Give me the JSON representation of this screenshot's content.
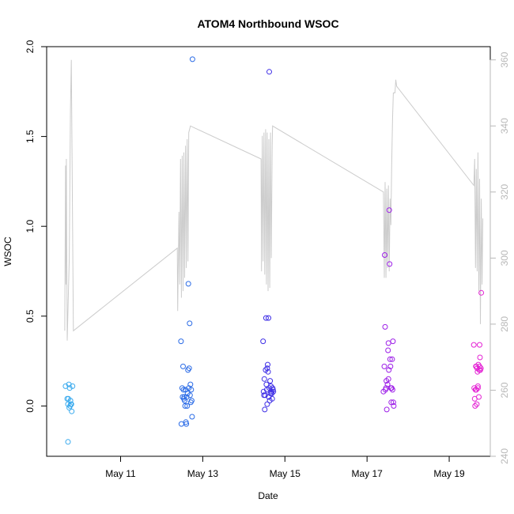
{
  "chart_data": {
    "type": "scatter",
    "title": "ATOM4 Northbound WSOC",
    "xlabel": "Date",
    "ylabel": "WSOC",
    "x_unit": "days after May 10, 00:00",
    "xlim": [
      9.2,
      20.0
    ],
    "ylim": [
      -0.28,
      2.0
    ],
    "x_ticks": [
      {
        "label": "May 11",
        "value": 11
      },
      {
        "label": "May 13",
        "value": 13
      },
      {
        "label": "May 15",
        "value": 15
      },
      {
        "label": "May 17",
        "value": 17
      },
      {
        "label": "May 19",
        "value": 19
      }
    ],
    "y_ticks": [
      {
        "label": "0.0",
        "value": 0.0
      },
      {
        "label": "0.5",
        "value": 0.5
      },
      {
        "label": "1.0",
        "value": 1.0
      },
      {
        "label": "1.5",
        "value": 1.5
      },
      {
        "label": "2.0",
        "value": 2.0
      }
    ],
    "y2_ticks": [
      {
        "label": "240",
        "value": 240
      },
      {
        "label": "260",
        "value": 260
      },
      {
        "label": "280",
        "value": 280
      },
      {
        "label": "300",
        "value": 300
      },
      {
        "label": "320",
        "value": 320
      },
      {
        "label": "340",
        "value": 340
      },
      {
        "label": "360",
        "value": 360
      }
    ],
    "y2lim": [
      240,
      364
    ],
    "line_color": "#cccccc",
    "colors": {
      "day1": "#39aaee",
      "day2": "#2a6be6",
      "day3": "#3f2fe6",
      "day4": "#9d1fe8",
      "day5": "#e423d4"
    },
    "series": [
      {
        "color_key": "day1",
        "points": [
          [
            9.66,
            0.11
          ],
          [
            9.7,
            0.04
          ],
          [
            9.72,
            0.01
          ],
          [
            9.73,
            0.04
          ],
          [
            9.74,
            0.12
          ],
          [
            9.75,
            -0.01
          ],
          [
            9.76,
            0.1
          ],
          [
            9.77,
            0.0
          ],
          [
            9.78,
            0.03
          ],
          [
            9.79,
            0.01
          ],
          [
            9.8,
            0.01
          ],
          [
            9.81,
            -0.03
          ],
          [
            9.83,
            0.11
          ],
          [
            9.72,
            -0.2
          ]
        ]
      },
      {
        "color_key": "day2",
        "points": [
          [
            12.47,
            0.36
          ],
          [
            12.48,
            -0.1
          ],
          [
            12.5,
            0.1
          ],
          [
            12.52,
            0.22
          ],
          [
            12.53,
            0.09
          ],
          [
            12.55,
            0.05
          ],
          [
            12.56,
            0.03
          ],
          [
            12.57,
            0.0
          ],
          [
            12.58,
            0.09
          ],
          [
            12.59,
            -0.09
          ],
          [
            12.6,
            -0.1
          ],
          [
            12.61,
            0.05
          ],
          [
            12.62,
            0.0
          ],
          [
            12.64,
            0.2
          ],
          [
            12.65,
            0.68
          ],
          [
            12.66,
            0.1
          ],
          [
            12.67,
            0.21
          ],
          [
            12.68,
            0.46
          ],
          [
            12.69,
            0.06
          ],
          [
            12.7,
            0.12
          ],
          [
            12.71,
            0.02
          ],
          [
            12.72,
            0.09
          ],
          [
            12.73,
            0.03
          ],
          [
            12.74,
            -0.06
          ],
          [
            12.75,
            1.93
          ],
          [
            12.63,
            0.07
          ],
          [
            12.54,
            0.04
          ],
          [
            12.51,
            0.05
          ]
        ]
      },
      {
        "color_key": "day3",
        "points": [
          [
            14.47,
            0.36
          ],
          [
            14.48,
            0.08
          ],
          [
            14.49,
            0.06
          ],
          [
            14.5,
            0.15
          ],
          [
            14.51,
            -0.02
          ],
          [
            14.52,
            0.06
          ],
          [
            14.53,
            0.2
          ],
          [
            14.54,
            0.49
          ],
          [
            14.55,
            0.12
          ],
          [
            14.56,
            0.09
          ],
          [
            14.57,
            0.01
          ],
          [
            14.58,
            0.23
          ],
          [
            14.59,
            0.19
          ],
          [
            14.6,
            0.49
          ],
          [
            14.61,
            0.05
          ],
          [
            14.62,
            0.1
          ],
          [
            14.63,
            0.03
          ],
          [
            14.64,
            0.14
          ],
          [
            14.65,
            0.07
          ],
          [
            14.66,
            0.11
          ],
          [
            14.67,
            0.08
          ],
          [
            14.68,
            0.07
          ],
          [
            14.69,
            0.04
          ],
          [
            14.7,
            0.1
          ],
          [
            14.71,
            0.09
          ],
          [
            14.72,
            0.08
          ],
          [
            14.62,
            1.86
          ],
          [
            14.57,
            0.21
          ]
        ]
      },
      {
        "color_key": "day4",
        "points": [
          [
            17.4,
            0.08
          ],
          [
            17.42,
            0.22
          ],
          [
            17.43,
            0.84
          ],
          [
            17.44,
            0.44
          ],
          [
            17.45,
            0.09
          ],
          [
            17.47,
            0.14
          ],
          [
            17.48,
            -0.02
          ],
          [
            17.5,
            0.12
          ],
          [
            17.51,
            0.31
          ],
          [
            17.52,
            0.35
          ],
          [
            17.53,
            0.2
          ],
          [
            17.54,
            1.09
          ],
          [
            17.55,
            0.79
          ],
          [
            17.56,
            0.26
          ],
          [
            17.57,
            0.22
          ],
          [
            17.58,
            0.1
          ],
          [
            17.59,
            0.02
          ],
          [
            17.6,
            0.1
          ],
          [
            17.61,
            0.26
          ],
          [
            17.62,
            0.09
          ],
          [
            17.63,
            0.36
          ],
          [
            17.64,
            0.02
          ],
          [
            17.65,
            0.0
          ],
          [
            17.52,
            0.15
          ],
          [
            17.46,
            0.1
          ]
        ]
      },
      {
        "color_key": "day5",
        "points": [
          [
            19.6,
            0.34
          ],
          [
            19.61,
            0.1
          ],
          [
            19.62,
            0.04
          ],
          [
            19.63,
            0.0
          ],
          [
            19.64,
            0.09
          ],
          [
            19.65,
            0.22
          ],
          [
            19.66,
            0.22
          ],
          [
            19.67,
            0.01
          ],
          [
            19.68,
            0.21
          ],
          [
            19.69,
            0.19
          ],
          [
            19.7,
            0.1
          ],
          [
            19.71,
            0.23
          ],
          [
            19.72,
            0.05
          ],
          [
            19.73,
            0.2
          ],
          [
            19.74,
            0.34
          ],
          [
            19.75,
            0.27
          ],
          [
            19.76,
            0.2
          ],
          [
            19.77,
            0.21
          ],
          [
            19.78,
            0.63
          ],
          [
            19.7,
            0.11
          ],
          [
            19.66,
            0.09
          ],
          [
            19.74,
            0.22
          ]
        ]
      }
    ],
    "line_series": [
      [
        9.64,
        278
      ],
      [
        9.66,
        328
      ],
      [
        9.67,
        292
      ],
      [
        9.68,
        330
      ],
      [
        9.7,
        275
      ],
      [
        9.75,
        300
      ],
      [
        9.78,
        345
      ],
      [
        9.8,
        360
      ],
      [
        9.85,
        278
      ],
      [
        12.38,
        303
      ],
      [
        12.39,
        284
      ],
      [
        12.42,
        314
      ],
      [
        12.44,
        292
      ],
      [
        12.46,
        330
      ],
      [
        12.48,
        288
      ],
      [
        12.5,
        331
      ],
      [
        12.52,
        290
      ],
      [
        12.54,
        332
      ],
      [
        12.56,
        294
      ],
      [
        12.58,
        334
      ],
      [
        12.6,
        297
      ],
      [
        12.62,
        336
      ],
      [
        12.64,
        299
      ],
      [
        12.66,
        338
      ],
      [
        12.7,
        340
      ],
      [
        14.42,
        330
      ],
      [
        14.43,
        296
      ],
      [
        14.45,
        337
      ],
      [
        14.47,
        299
      ],
      [
        14.49,
        338
      ],
      [
        14.51,
        295
      ],
      [
        14.53,
        339
      ],
      [
        14.55,
        292
      ],
      [
        14.57,
        338
      ],
      [
        14.59,
        290
      ],
      [
        14.61,
        336
      ],
      [
        14.63,
        291
      ],
      [
        14.65,
        338
      ],
      [
        14.67,
        300
      ],
      [
        14.69,
        334
      ],
      [
        14.7,
        340
      ],
      [
        17.4,
        320
      ],
      [
        17.42,
        294
      ],
      [
        17.44,
        323
      ],
      [
        17.46,
        294
      ],
      [
        17.48,
        321
      ],
      [
        17.5,
        297
      ],
      [
        17.52,
        322
      ],
      [
        17.54,
        296
      ],
      [
        17.56,
        318
      ],
      [
        17.58,
        310
      ],
      [
        17.6,
        328
      ],
      [
        17.62,
        342
      ],
      [
        17.64,
        350
      ],
      [
        17.68,
        350
      ],
      [
        17.7,
        354
      ],
      [
        17.72,
        352
      ],
      [
        19.6,
        322
      ],
      [
        19.62,
        330
      ],
      [
        19.64,
        297
      ],
      [
        19.66,
        327
      ],
      [
        19.68,
        296
      ],
      [
        19.7,
        332
      ],
      [
        19.72,
        290
      ],
      [
        19.74,
        324
      ],
      [
        19.76,
        280
      ],
      [
        19.78,
        318
      ],
      [
        19.8,
        292
      ],
      [
        19.82,
        312
      ]
    ]
  }
}
